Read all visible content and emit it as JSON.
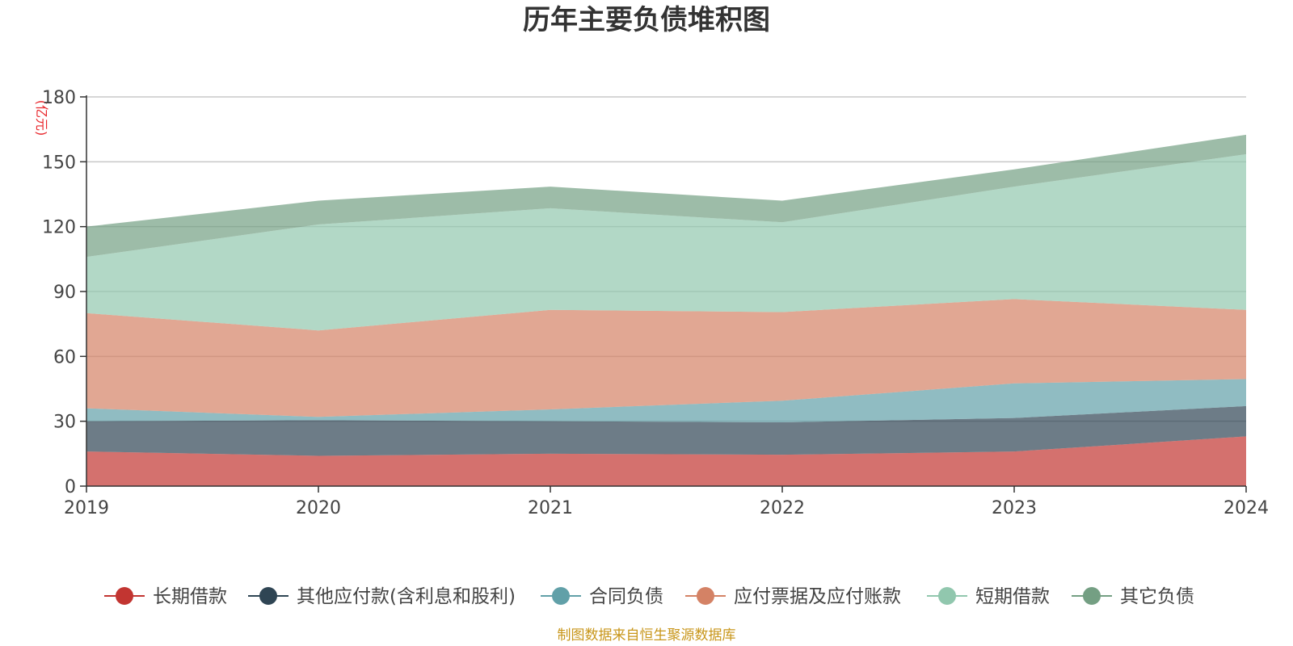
{
  "chart_data": {
    "type": "area",
    "stacked": true,
    "title": "历年主要负债堆积图",
    "unit_label": "(亿元)",
    "x": [
      "2019",
      "2020",
      "2021",
      "2022",
      "2023",
      "2024"
    ],
    "ylim": [
      0,
      180
    ],
    "yticks": [
      0,
      30,
      60,
      90,
      120,
      150,
      180
    ],
    "grid": true,
    "legend_position": "bottom",
    "series": [
      {
        "name": "长期借款",
        "color": "#c23531",
        "values": [
          16,
          14,
          15,
          14.5,
          16,
          23
        ]
      },
      {
        "name": "其他应付款(含利息和股利)",
        "color": "#2f4554",
        "values": [
          14,
          16.5,
          15,
          15,
          15.5,
          14
        ]
      },
      {
        "name": "合同负债",
        "color": "#61a0a8",
        "values": [
          6,
          1.5,
          5.5,
          10,
          16,
          12.5
        ]
      },
      {
        "name": "应付票据及应付账款",
        "color": "#d48265",
        "values": [
          44,
          40,
          46,
          41,
          39,
          32
        ]
      },
      {
        "name": "短期借款",
        "color": "#91c7ae",
        "values": [
          26,
          49,
          47,
          41.5,
          52,
          72
        ]
      },
      {
        "name": "其它负债",
        "color": "#749f83",
        "values": [
          14,
          11,
          10,
          10,
          8,
          9
        ]
      }
    ]
  },
  "source_note": "制图数据来自恒生聚源数据库"
}
